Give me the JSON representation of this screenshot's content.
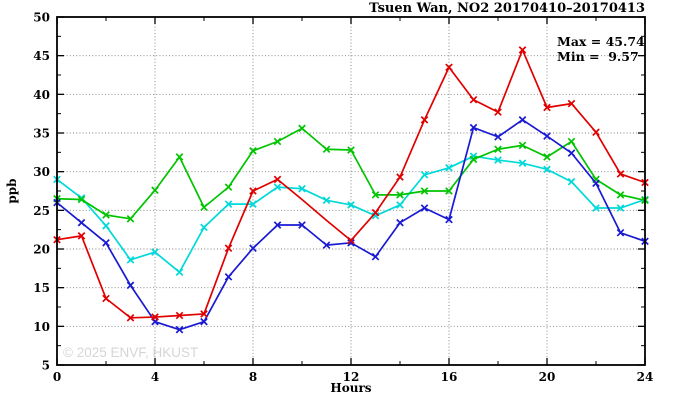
{
  "watermark": "© 2025 ENVF, HKUST",
  "colors": {
    "background": "#ffffff",
    "axis": "#000000",
    "grid": "#7d7d7d",
    "watermark": "#d6d6d6",
    "series_red": "#e10000",
    "series_green": "#00c400",
    "series_blue": "#1a1ad2",
    "series_cyan": "#00d9d9"
  },
  "chart_data": {
    "type": "line",
    "title": "Tsuen Wan, NO2 20170410–20170413",
    "xlabel": "Hours",
    "ylabel": "ppb",
    "xlim": [
      0,
      24
    ],
    "ylim": [
      5,
      50
    ],
    "x_major_ticks": [
      0,
      4,
      8,
      12,
      16,
      20,
      24
    ],
    "x_minor_step": 2,
    "y_major_ticks": [
      5,
      10,
      15,
      20,
      25,
      30,
      35,
      40,
      45,
      50
    ],
    "y_minor_step": 2.5,
    "grid": true,
    "legend_position": "none",
    "annotations": {
      "max_label": "Max = 45.74",
      "min_label": "Min =  9.57",
      "max_value": 45.74,
      "min_value": 9.57
    },
    "x": [
      0,
      1,
      2,
      3,
      4,
      5,
      6,
      7,
      8,
      9,
      10,
      11,
      12,
      13,
      14,
      15,
      16,
      17,
      18,
      19,
      20,
      21,
      22,
      23,
      24
    ],
    "series": [
      {
        "name": "cyan",
        "color": "#00d9d9",
        "marker": "x",
        "values": [
          29.0,
          26.6,
          23.0,
          18.6,
          19.6,
          17.0,
          22.8,
          25.8,
          25.8,
          28.0,
          27.8,
          26.3,
          25.7,
          24.3,
          25.7,
          29.6,
          30.5,
          32.0,
          31.5,
          31.1,
          30.3,
          28.7,
          25.3,
          25.3,
          26.4
        ]
      },
      {
        "name": "green",
        "color": "#00c400",
        "marker": "x",
        "values": [
          26.5,
          26.4,
          24.4,
          23.9,
          27.6,
          31.9,
          25.4,
          28.0,
          32.7,
          33.9,
          35.6,
          32.9,
          32.8,
          27.0,
          27.0,
          27.5,
          27.5,
          31.6,
          32.9,
          33.4,
          31.9,
          33.9,
          29.0,
          27.0,
          26.3
        ]
      },
      {
        "name": "blue",
        "color": "#1a1ad2",
        "marker": "x",
        "values": [
          26.0,
          23.4,
          20.8,
          15.3,
          10.6,
          9.57,
          10.6,
          16.4,
          20.1,
          23.1,
          23.1,
          20.5,
          20.8,
          19.0,
          23.4,
          25.3,
          23.8,
          35.7,
          34.5,
          36.7,
          34.6,
          32.4,
          28.5,
          22.1,
          21.0
        ]
      },
      {
        "name": "red",
        "color": "#e10000",
        "marker": "x",
        "marker_gaps": [
          10,
          11
        ],
        "values": [
          21.2,
          21.7,
          13.6,
          11.1,
          11.2,
          11.4,
          11.6,
          20.1,
          27.5,
          29.0,
          26.4,
          23.7,
          21.1,
          24.7,
          29.3,
          36.7,
          43.5,
          39.3,
          37.7,
          45.74,
          38.3,
          38.8,
          35.1,
          29.7,
          28.6
        ]
      }
    ]
  }
}
